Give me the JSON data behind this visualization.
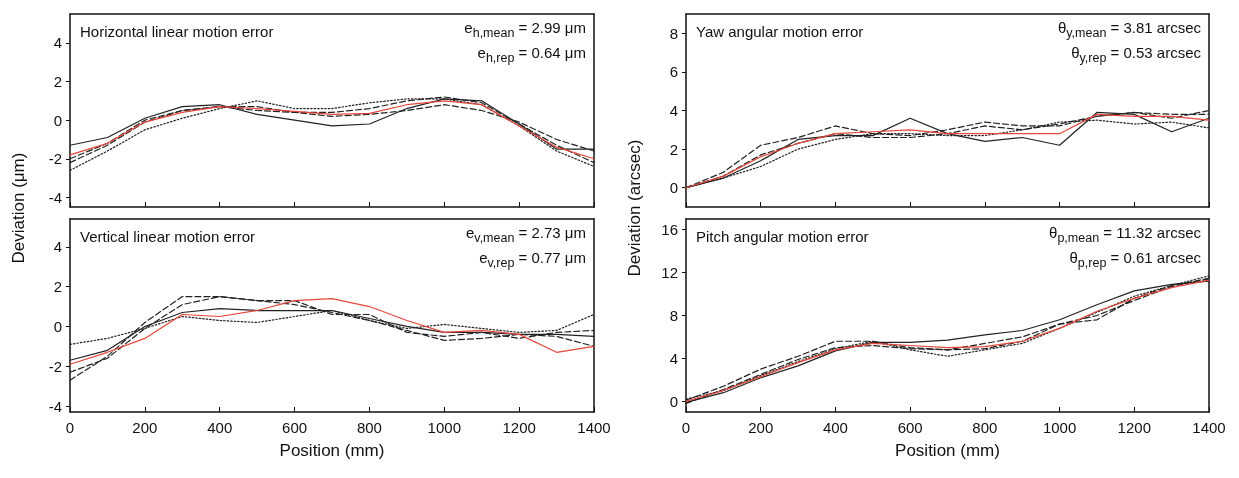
{
  "chart_data": [
    {
      "type": "line",
      "title": "Horizontal linear motion error",
      "annotations": [
        "e$_{h,mean}$ = 2.99 μm",
        "e$_{h,rep}$ = 0.64 μm"
      ],
      "ylabel": "Deviation (μm)",
      "x": [
        0,
        100,
        200,
        300,
        400,
        500,
        600,
        700,
        800,
        900,
        1000,
        1100,
        1200,
        1300,
        1400
      ],
      "xlim": [
        0,
        1400
      ],
      "xticks": [
        0,
        200,
        400,
        600,
        800,
        1000,
        1200,
        1400
      ],
      "ylim": [
        -4.5,
        5.5
      ],
      "yticks": [
        -4,
        -2,
        0,
        2,
        4
      ],
      "tick_labels": "y",
      "grid": false,
      "series": [
        {
          "color": "#222222",
          "line_style": "solid",
          "values": [
            -1.3,
            -0.9,
            0.1,
            0.7,
            0.8,
            0.3,
            0,
            -0.3,
            -0.2,
            0.6,
            1.1,
            1.0,
            -0.2,
            -1.5,
            -1.5
          ]
        },
        {
          "color": "#222222",
          "line_style": "dashed",
          "values": [
            -2.2,
            -1.3,
            -0.1,
            0.5,
            0.7,
            0.5,
            0.4,
            0.2,
            0.3,
            0.5,
            0.8,
            0.5,
            -0.1,
            -1.0,
            -1.6
          ]
        },
        {
          "color": "#222222",
          "line_style": "dotted",
          "values": [
            -2.6,
            -1.6,
            -0.5,
            0.1,
            0.6,
            1.0,
            0.6,
            0.6,
            0.9,
            1.1,
            1.1,
            0.8,
            -0.3,
            -1.6,
            -2.4
          ]
        },
        {
          "color": "#222222",
          "line_style": "dashed",
          "values": [
            -2.0,
            -1.2,
            0.0,
            0.5,
            0.7,
            0.7,
            0.4,
            0.4,
            0.6,
            1.0,
            1.2,
            0.9,
            -0.2,
            -1.3,
            -2.2
          ]
        },
        {
          "color": "#e8463a",
          "line_style": "solid",
          "values": [
            -1.8,
            -1.2,
            -0.1,
            0.4,
            0.7,
            0.6,
            0.45,
            0.3,
            0.35,
            0.8,
            1.0,
            0.8,
            -0.3,
            -1.4,
            -2.0
          ]
        }
      ]
    },
    {
      "type": "line",
      "title": "Vertical linear motion error",
      "annotations": [
        "e$_{v,mean}$ = 2.73 μm",
        "e$_{v,rep}$ = 0.77 μm"
      ],
      "xlabel": "Position (mm)",
      "x": [
        0,
        100,
        200,
        300,
        400,
        500,
        600,
        700,
        800,
        900,
        1000,
        1100,
        1200,
        1300,
        1400
      ],
      "xlim": [
        0,
        1400
      ],
      "xticks": [
        0,
        200,
        400,
        600,
        800,
        1000,
        1200,
        1400
      ],
      "ylim": [
        -4.3,
        5.4
      ],
      "yticks": [
        -4,
        -2,
        0,
        2,
        4
      ],
      "grid": false,
      "series": [
        {
          "color": "#222222",
          "line_style": "solid",
          "values": [
            -1.7,
            -1.2,
            0.0,
            0.7,
            0.9,
            0.8,
            0.8,
            0.8,
            0.4,
            0,
            -0.3,
            -0.3,
            -0.4,
            -0.4,
            -0.5
          ]
        },
        {
          "color": "#222222",
          "line_style": "dashed",
          "values": [
            -2.3,
            -1.6,
            -0.1,
            1.1,
            1.5,
            1.3,
            1.1,
            0.7,
            0.3,
            -0.2,
            -0.7,
            -0.6,
            -0.4,
            -0.5,
            -1.0
          ]
        },
        {
          "color": "#222222",
          "line_style": "dotted",
          "values": [
            -0.9,
            -0.6,
            -0.1,
            0.5,
            0.3,
            0.2,
            0.5,
            0.8,
            0.3,
            -0.1,
            0.1,
            -0.1,
            -0.3,
            -0.2,
            0.6
          ]
        },
        {
          "color": "#222222",
          "line_style": "dashed",
          "values": [
            -2.7,
            -1.5,
            0.2,
            1.5,
            1.5,
            1.3,
            1.3,
            0.6,
            0.6,
            -0.3,
            -0.5,
            -0.3,
            -0.6,
            -0.3,
            -0.2
          ]
        },
        {
          "color": "#e8463a",
          "line_style": "solid",
          "values": [
            -1.9,
            -1.3,
            -0.6,
            0.6,
            0.5,
            0.8,
            1.3,
            1.4,
            1.0,
            0.3,
            -0.3,
            -0.2,
            -0.4,
            -1.3,
            -1.0
          ]
        }
      ]
    },
    {
      "type": "line",
      "title": "Yaw angular motion error",
      "annotations": [
        "θ$_{y,mean}$ = 3.81 arcsec",
        "θ$_{y,rep}$ = 0.53 arcsec"
      ],
      "ylabel": "Deviation (arcsec)",
      "x": [
        0,
        100,
        200,
        300,
        400,
        500,
        600,
        700,
        800,
        900,
        1000,
        1100,
        1200,
        1300,
        1400
      ],
      "xlim": [
        0,
        1400
      ],
      "xticks": [
        0,
        200,
        400,
        600,
        800,
        1000,
        1200,
        1400
      ],
      "ylim": [
        -1,
        9
      ],
      "yticks": [
        0,
        2,
        4,
        6,
        8
      ],
      "tick_labels": "y",
      "grid": false,
      "series": [
        {
          "color": "#222222",
          "line_style": "solid",
          "values": [
            0,
            0.5,
            1.4,
            2.5,
            2.7,
            2.7,
            3.6,
            2.8,
            2.4,
            2.6,
            2.2,
            3.9,
            3.8,
            2.9,
            3.6
          ]
        },
        {
          "color": "#222222",
          "line_style": "dashed",
          "values": [
            0,
            0.8,
            2.2,
            2.6,
            3.2,
            2.8,
            2.7,
            3.0,
            3.4,
            3.2,
            3.2,
            3.7,
            3.9,
            3.8,
            3.8
          ]
        },
        {
          "color": "#222222",
          "line_style": "dotted",
          "values": [
            0,
            0.5,
            1.1,
            2.0,
            2.5,
            2.8,
            2.8,
            2.7,
            2.7,
            3.0,
            3.4,
            3.5,
            3.3,
            3.4,
            3.1
          ]
        },
        {
          "color": "#222222",
          "line_style": "dashed",
          "values": [
            0,
            0.6,
            1.7,
            2.3,
            2.8,
            2.6,
            2.6,
            2.8,
            3.2,
            3.0,
            3.3,
            3.7,
            3.9,
            3.6,
            4.0
          ]
        },
        {
          "color": "#e8463a",
          "line_style": "solid",
          "values": [
            0,
            0.6,
            1.6,
            2.3,
            2.8,
            2.9,
            3.0,
            2.8,
            2.8,
            2.8,
            2.8,
            3.8,
            3.7,
            3.7,
            3.5
          ]
        }
      ]
    },
    {
      "type": "line",
      "title": "Pitch angular motion error",
      "annotations": [
        "θ$_{p,mean}$ = 11.32 arcsec",
        "θ$_{p,rep}$ = 0.61 arcsec"
      ],
      "xlabel": "Position (mm)",
      "x": [
        0,
        100,
        200,
        300,
        400,
        500,
        600,
        700,
        800,
        900,
        1000,
        1100,
        1200,
        1300,
        1400
      ],
      "xlim": [
        0,
        1400
      ],
      "xticks": [
        0,
        200,
        400,
        600,
        800,
        1000,
        1200,
        1400
      ],
      "ylim": [
        -1,
        17
      ],
      "yticks": [
        0,
        4,
        8,
        12,
        16
      ],
      "grid": false,
      "series": [
        {
          "color": "#222222",
          "line_style": "solid",
          "values": [
            -0.1,
            0.8,
            2.2,
            3.3,
            4.7,
            5.5,
            5.5,
            5.7,
            6.2,
            6.6,
            7.6,
            9.0,
            10.3,
            10.9,
            11.2
          ]
        },
        {
          "color": "#222222",
          "line_style": "dashed",
          "values": [
            0.1,
            1.4,
            3.0,
            4.2,
            5.6,
            5.6,
            5.0,
            4.8,
            5.4,
            6.0,
            7.2,
            8.0,
            9.4,
            10.7,
            11.5
          ]
        },
        {
          "color": "#222222",
          "line_style": "dotted",
          "values": [
            0.2,
            1.0,
            2.4,
            3.7,
            4.9,
            5.6,
            4.8,
            4.2,
            4.8,
            5.4,
            6.8,
            8.3,
            9.8,
            10.8,
            11.7
          ]
        },
        {
          "color": "#222222",
          "line_style": "dashed",
          "values": [
            -0.2,
            1.1,
            2.5,
            3.9,
            5.0,
            5.2,
            4.9,
            4.8,
            4.9,
            5.6,
            7.2,
            7.6,
            9.6,
            10.8,
            11.4
          ]
        },
        {
          "color": "#e8463a",
          "line_style": "solid",
          "values": [
            0,
            1.0,
            2.3,
            3.6,
            4.8,
            5.4,
            5.2,
            5.0,
            5.1,
            5.6,
            6.8,
            8.4,
            9.6,
            10.6,
            11.3
          ]
        }
      ]
    }
  ]
}
